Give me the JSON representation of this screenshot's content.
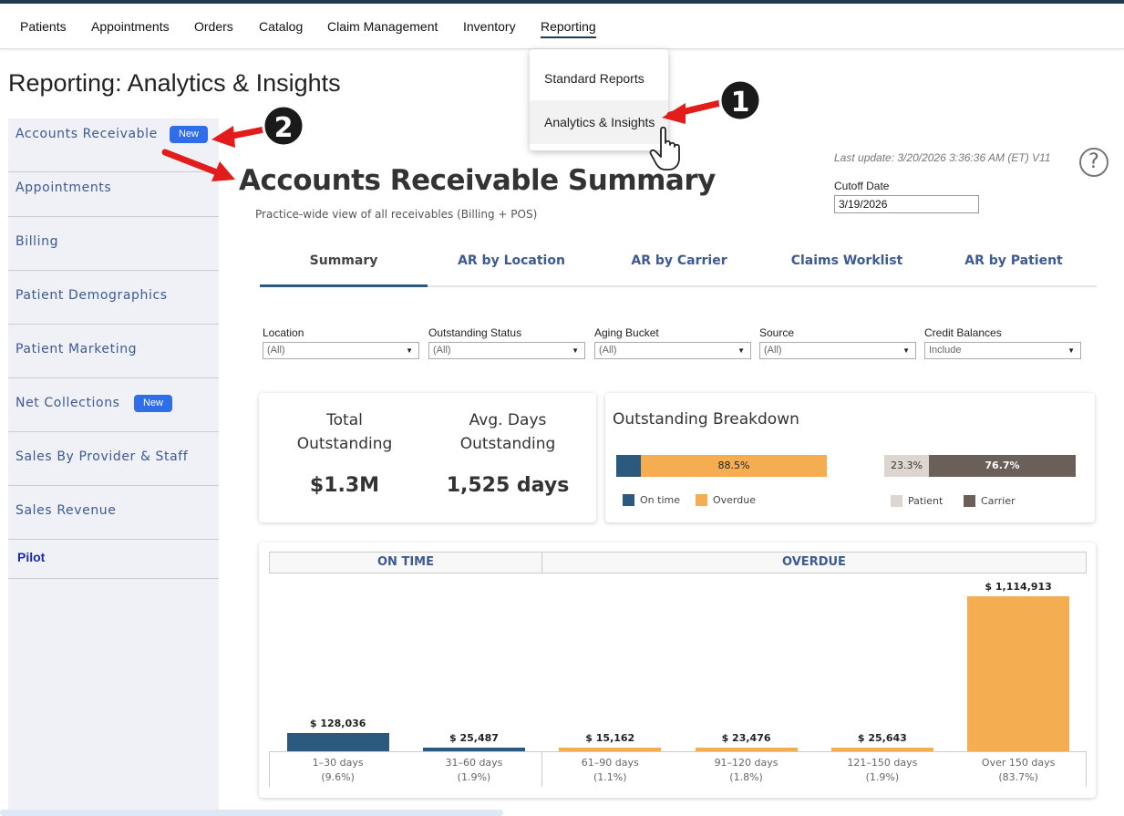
{
  "nav": {
    "items": [
      "Patients",
      "Appointments",
      "Orders",
      "Catalog",
      "Claim Management",
      "Inventory",
      "Reporting"
    ],
    "active": "Reporting"
  },
  "dropdown": {
    "items": [
      "Standard Reports",
      "Analytics & Insights"
    ],
    "hovered": "Analytics & Insights"
  },
  "page_title": "Reporting: Analytics & Insights",
  "sidebar": {
    "items": [
      {
        "label": "Accounts Receivable",
        "badge": "New"
      },
      {
        "label": "Appointments"
      },
      {
        "label": "Billing"
      },
      {
        "label": "Patient Demographics"
      },
      {
        "label": "Patient Marketing"
      },
      {
        "label": "Net Collections",
        "badge": "New"
      },
      {
        "label": "Sales By Provider & Staff"
      },
      {
        "label": "Sales Revenue"
      }
    ],
    "pilot": "Pilot"
  },
  "annotations": {
    "step1": "1",
    "step2": "2"
  },
  "dashboard": {
    "title": "Accounts Receivable Summary",
    "subtitle": "Practice-wide view of all receivables (Billing + POS)",
    "last_update": "Last update: 3/20/2026 3:36:36 AM (ET) V11",
    "help_glyph": "?",
    "cutoff_label": "Cutoff Date",
    "cutoff_value": "3/19/2026",
    "tabs": [
      "Summary",
      "AR by Location",
      "AR by Carrier",
      "Claims Worklist",
      "AR by Patient"
    ],
    "active_tab": "Summary",
    "filters": [
      {
        "label": "Location",
        "value": "(All)"
      },
      {
        "label": "Outstanding Status",
        "value": "(All)"
      },
      {
        "label": "Aging Bucket",
        "value": "(All)"
      },
      {
        "label": "Source",
        "value": "(All)"
      },
      {
        "label": "Credit Balances",
        "value": "Include"
      }
    ],
    "kpis": {
      "total_label_1": "Total",
      "total_label_2": "Outstanding",
      "total_value": "$1.3M",
      "avg_label_1": "Avg. Days",
      "avg_label_2": "Outstanding",
      "avg_value": "1,525 days"
    },
    "breakdown": {
      "title": "Outstanding Breakdown",
      "status": {
        "on_time_pct": 11.5,
        "overdue_pct": 88.5,
        "overdue_label": "88.5%",
        "legend_on_time": "On time",
        "legend_overdue": "Overdue"
      },
      "payer": {
        "patient_pct": 23.3,
        "carrier_pct": 76.7,
        "patient_label": "23.3%",
        "carrier_label": "76.7%",
        "legend_patient": "Patient",
        "legend_carrier": "Carrier"
      }
    },
    "colors": {
      "on_time": "#2c5a7e",
      "overdue": "#f5ad52",
      "patient": "#ddd5cf",
      "carrier": "#6b5f59"
    }
  },
  "chart_data": {
    "type": "bar",
    "groups": [
      "ON TIME",
      "OVERDUE"
    ],
    "categories": [
      "1–30 days",
      "31–60 days",
      "61–90 days",
      "91–120 days",
      "121–150 days",
      "Over 150 days"
    ],
    "values": [
      128036,
      25487,
      15162,
      23476,
      25643,
      1114913
    ],
    "value_labels": [
      "$ 128,036",
      "$ 25,487",
      "$ 15,162",
      "$ 23,476",
      "$ 25,643",
      "$ 1,114,913"
    ],
    "pct_labels": [
      "(9.6%)",
      "(1.9%)",
      "(1.1%)",
      "(1.8%)",
      "(1.9%)",
      "(83.7%)"
    ],
    "group_of": [
      "ON TIME",
      "ON TIME",
      "OVERDUE",
      "OVERDUE",
      "OVERDUE",
      "OVERDUE"
    ]
  }
}
